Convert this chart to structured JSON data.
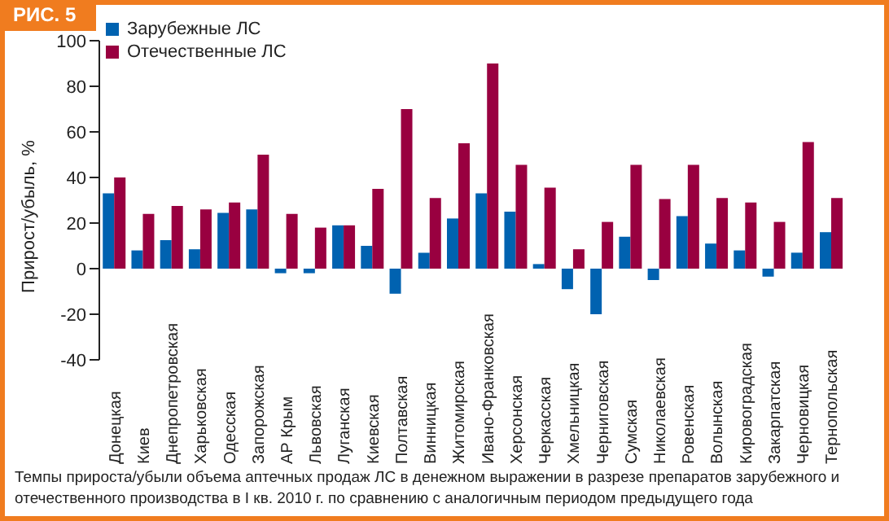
{
  "chart_data": {
    "type": "bar",
    "title": "РИС. 5",
    "ylabel": "Прирост/убыль, %",
    "categories": [
      "Донецкая",
      "Киев",
      "Днепропетровская",
      "Харьковская",
      "Одесская",
      "Запорожская",
      "АР Крым",
      "Львовская",
      "Луганская",
      "Киевская",
      "Полтавская",
      "Винницкая",
      "Житомирская",
      "Ивано-Франковская",
      "Херсонская",
      "Черкасская",
      "Хмельницкая",
      "Черниговская",
      "Сумская",
      "Николаевская",
      "Ровенская",
      "Волынская",
      "Кировоградская",
      "Закарпатская",
      "Черновицкая",
      "Тернопольская"
    ],
    "series": [
      {
        "name": "Зарубежные ЛС",
        "color": "#0062b0",
        "values": [
          33,
          8,
          12.5,
          8.5,
          24.5,
          26,
          -2,
          -2,
          19,
          10,
          -11,
          7,
          22,
          33,
          25,
          2,
          -9,
          -20,
          14,
          -5,
          23,
          11,
          8,
          -3.5,
          7,
          16
        ]
      },
      {
        "name": "Отечественные ЛС",
        "color": "#990040",
        "values": [
          40,
          24,
          27.5,
          26,
          29,
          50,
          24,
          18,
          19,
          35,
          70,
          31,
          55,
          90,
          45.5,
          35.5,
          8.5,
          20.5,
          45.5,
          30.5,
          45.5,
          31,
          29,
          20.5,
          55.5,
          31
        ]
      }
    ],
    "ylim": [
      -40,
      100
    ],
    "yticks": [
      -40,
      -20,
      0,
      20,
      40,
      60,
      80,
      100
    ],
    "grid": false,
    "legend": "top left",
    "annotations": [
      "Темпы прироста/убыли объема аптечных продаж ЛС в денежном выражении в разрезе препаратов зарубежного и отечественного производства в I кв. 2010 г. по сравнению с аналогичным периодом предыдущего года"
    ]
  }
}
